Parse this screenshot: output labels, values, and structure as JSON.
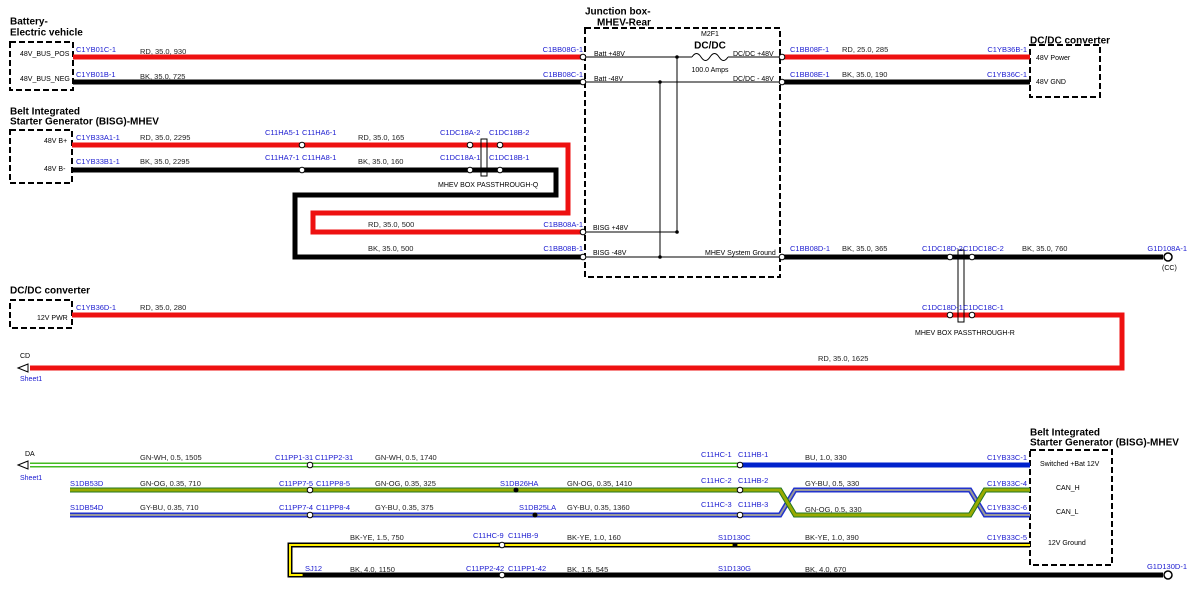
{
  "components": [
    {
      "title": [
        "Battery-",
        "Electric vehicle"
      ],
      "pins": [
        "48V_BUS_POS",
        "48V_BUS_NEG"
      ]
    },
    {
      "title": [
        "Belt Integrated",
        "Starter Generator (BISG)-MHEV"
      ],
      "pins": [
        "48V B+",
        "48V B-"
      ]
    },
    {
      "title": [
        "Junction box-",
        "MHEV-Rear"
      ],
      "pins": [
        "Batt +48V",
        "Batt -48V",
        "BISG +48V",
        "BISG -48V",
        "DC/DC +48V",
        "DC/DC - 48V",
        "MHEV System Ground"
      ]
    },
    {
      "title": [
        "DC/DC converter"
      ],
      "pins": [
        "48V Power",
        "48V GND"
      ]
    },
    {
      "title": [
        "DC/DC converter"
      ],
      "pins": [
        "12V PWR"
      ]
    },
    {
      "title": [
        "Belt Integrated",
        "Starter Generator (BISG)-MHEV"
      ],
      "pins": [
        "Switched +Bat 12V",
        "CAN_H",
        "CAN_L",
        "12V Ground"
      ]
    }
  ],
  "connectors": [
    "C1YB01C-1",
    "C1YB01B-1",
    "C1BB08G-1",
    "C1BB08C-1",
    "C1BB08F-1",
    "C1YB36B-1",
    "C1BB08E-1",
    "C1YB36C-1",
    "C1YB33A1-1",
    "C1YB33B1-1",
    "C11HA5-1",
    "C11HA6-1",
    "C11HA7-1",
    "C11HA8-1",
    "C1DC18A-2",
    "C1DC18B-2",
    "C1DC18A-1",
    "C1DC18B-1",
    "C1BB08A-1",
    "C1BB08B-1",
    "C1BB08D-1",
    "C1DC18D-2",
    "C1DC18C-2",
    "G1D108A-1",
    "C1YB36D-1",
    "C1DC18D-1",
    "C1DC18C-1",
    "C11PP1-31",
    "C11PP2-31",
    "C11HC-1",
    "C11HB-1",
    "C1YB33C-1",
    "S1DB53D",
    "C11PP7-5",
    "C11PP8-5",
    "S1DB26HA",
    "C11HC-2",
    "C11HB-2",
    "C1YB33C-4",
    "S1DB54D",
    "C11PP7-4",
    "C11PP8-4",
    "S1DB25LA",
    "C11HC-3",
    "C11HB-3",
    "C1YB33C-6",
    "C11HC-9",
    "C11HB-9",
    "S1D130C",
    "C1YB33C-5",
    "SJ12",
    "C11PP2-42",
    "C11PP1-42",
    "S1D130G",
    "G1D130D-1"
  ],
  "wires": [
    "RD, 35.0, 930",
    "BK, 35.0, 725",
    "RD, 25.0, 285",
    "BK, 35.0, 190",
    "RD, 35.0, 2295",
    "RD, 35.0, 165",
    "BK, 35.0, 2295",
    "BK, 35.0, 160",
    "RD, 35.0, 500",
    "BK, 35.0, 500",
    "BK, 35.0, 365",
    "BK, 35.0, 760",
    "RD, 35.0, 280",
    "RD, 35.0, 1625",
    "GN-WH, 0.5, 1505",
    "GN-WH, 0.5, 1740",
    "BU, 1.0, 330",
    "GN-OG, 0.35, 710",
    "GN-OG, 0.35, 325",
    "GN-OG, 0.35, 1410",
    "GY-BU, 0.5, 330",
    "GY-BU, 0.35, 710",
    "GY-BU, 0.35, 375",
    "GY-BU, 0.35, 1360",
    "GN-OG, 0.5, 330",
    "BK-YE, 1.5, 750",
    "BK-YE, 1.0, 160",
    "BK-YE, 1.0, 390",
    "BK, 4.0, 1150",
    "BK, 1.5, 545",
    "BK, 4.0, 670"
  ],
  "notes": [
    "MHEV BOX PASSTHROUGH-Q",
    "MHEV BOX PASSTHROUGH-R",
    "(CC)",
    "CD",
    "Sheet1",
    "DA",
    "Sheet1",
    "M2F1",
    "DC/DC",
    "100.0 Amps"
  ]
}
